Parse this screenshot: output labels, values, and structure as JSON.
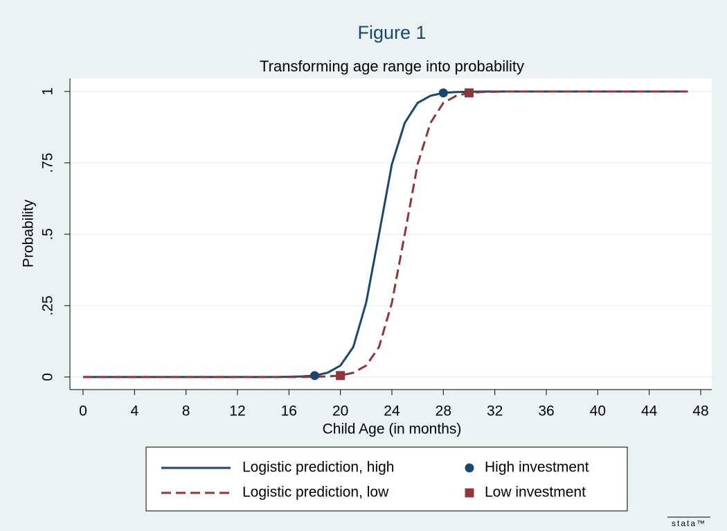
{
  "chart_data": {
    "type": "line",
    "title": "Figure 1",
    "subtitle": "Transforming age range into probability",
    "x_label": "Child Age (in months)",
    "y_label": "Probability",
    "xlim": [
      -1.02,
      48.86
    ],
    "ylim": [
      -0.044,
      1.046
    ],
    "xticks": [
      0,
      4,
      8,
      12,
      16,
      20,
      24,
      28,
      32,
      36,
      40,
      44,
      48
    ],
    "yticks": [
      0,
      {
        "value": 0.25,
        "label": ".25"
      },
      {
        "value": 0.5,
        "label": ".5"
      },
      {
        "value": 0.75,
        "label": ".75"
      },
      1
    ],
    "grid": true,
    "legend": "bottom",
    "watermark": "stata™",
    "series": [
      {
        "name": "Logistic prediction, high",
        "color": "#1a476f",
        "style": "solid",
        "x": [
          0,
          14,
          15,
          16,
          17,
          18,
          19,
          20,
          21,
          22,
          23,
          24,
          25,
          26,
          27,
          28,
          29,
          30,
          31,
          32,
          47
        ],
        "values": [
          0,
          0,
          0,
          0.001,
          0.002,
          0.005,
          0.015,
          0.04,
          0.105,
          0.26,
          0.5,
          0.745,
          0.89,
          0.96,
          0.985,
          0.995,
          0.998,
          0.999,
          1,
          1,
          1
        ]
      },
      {
        "name": "Logistic prediction, low",
        "color": "#90353b",
        "style": "dashed",
        "x": [
          0,
          16,
          17,
          18,
          19,
          20,
          21,
          22,
          23,
          24,
          25,
          26,
          27,
          28,
          29,
          30,
          31,
          32,
          33,
          34,
          47
        ],
        "values": [
          0,
          0,
          0,
          0.001,
          0.002,
          0.005,
          0.015,
          0.04,
          0.105,
          0.26,
          0.5,
          0.745,
          0.89,
          0.96,
          0.985,
          0.995,
          0.998,
          0.999,
          1,
          1,
          1
        ]
      },
      {
        "name": "High investment",
        "color": "#1a476f",
        "style": "marker",
        "marker": "circle",
        "x": [
          18,
          28
        ],
        "values": [
          0.005,
          0.995
        ]
      },
      {
        "name": "Low investment",
        "color": "#90353b",
        "style": "marker",
        "marker": "square",
        "x": [
          20,
          30
        ],
        "values": [
          0.005,
          0.995
        ]
      }
    ]
  }
}
